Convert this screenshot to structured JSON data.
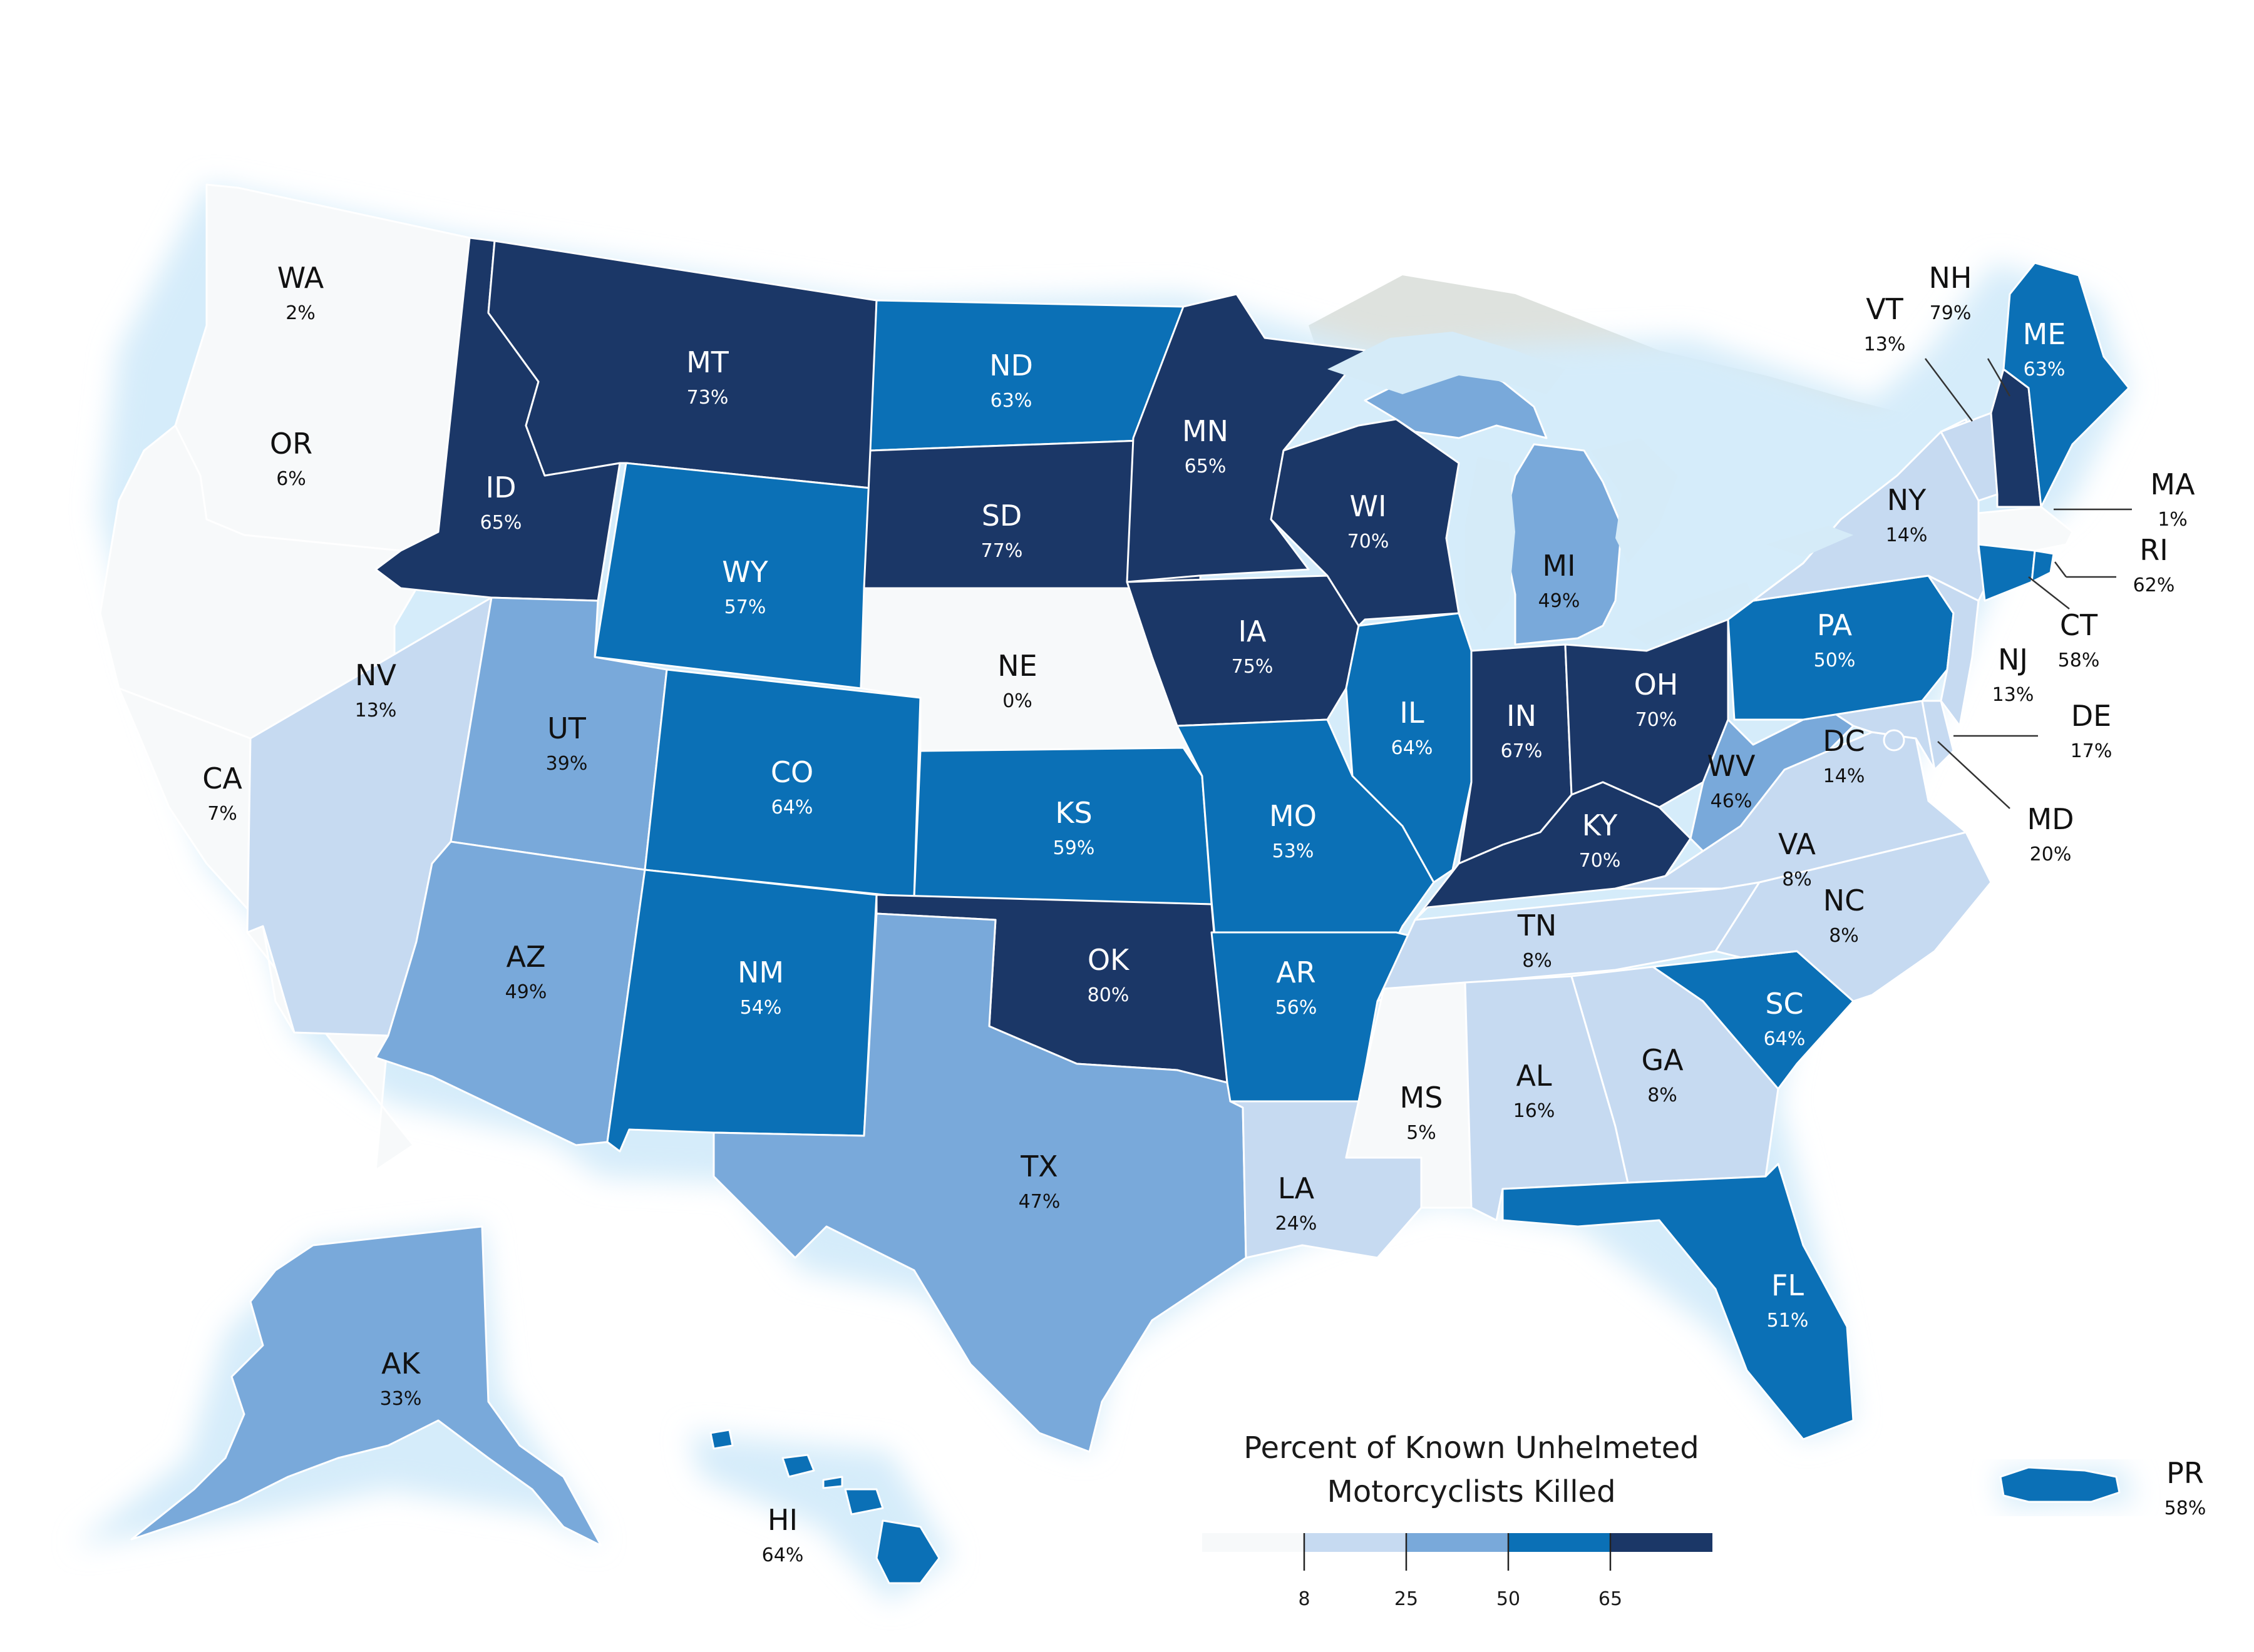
{
  "legend": {
    "title_line1": "Percent of Known Unhelmeted",
    "title_line2": "Motorcyclists Killed",
    "breaks": [
      "8",
      "25",
      "50",
      "65"
    ],
    "bin_colors": [
      "#f7f9fa",
      "#c6daf1",
      "#79a9da",
      "#0b70b6",
      "#1b3767"
    ]
  },
  "colors": {
    "lake": "#d5ebf8",
    "canada": "#dee2de",
    "glow": "#d5ecfa",
    "dark_text": "#111111",
    "light_text": "#ffffff"
  },
  "states": {
    "WA": {
      "code": "WA",
      "pct": "2%",
      "value": 2
    },
    "OR": {
      "code": "OR",
      "pct": "6%",
      "value": 6
    },
    "CA": {
      "code": "CA",
      "pct": "7%",
      "value": 7
    },
    "NV": {
      "code": "NV",
      "pct": "13%",
      "value": 13
    },
    "ID": {
      "code": "ID",
      "pct": "65%",
      "value": 65
    },
    "MT": {
      "code": "MT",
      "pct": "73%",
      "value": 73
    },
    "WY": {
      "code": "WY",
      "pct": "57%",
      "value": 57
    },
    "UT": {
      "code": "UT",
      "pct": "39%",
      "value": 39
    },
    "AZ": {
      "code": "AZ",
      "pct": "49%",
      "value": 49
    },
    "CO": {
      "code": "CO",
      "pct": "64%",
      "value": 64
    },
    "NM": {
      "code": "NM",
      "pct": "54%",
      "value": 54
    },
    "ND": {
      "code": "ND",
      "pct": "63%",
      "value": 63
    },
    "SD": {
      "code": "SD",
      "pct": "77%",
      "value": 77
    },
    "NE": {
      "code": "NE",
      "pct": "0%",
      "value": 0
    },
    "KS": {
      "code": "KS",
      "pct": "59%",
      "value": 59
    },
    "OK": {
      "code": "OK",
      "pct": "80%",
      "value": 80
    },
    "TX": {
      "code": "TX",
      "pct": "47%",
      "value": 47
    },
    "MN": {
      "code": "MN",
      "pct": "65%",
      "value": 65
    },
    "IA": {
      "code": "IA",
      "pct": "75%",
      "value": 75
    },
    "MO": {
      "code": "MO",
      "pct": "53%",
      "value": 53
    },
    "AR": {
      "code": "AR",
      "pct": "56%",
      "value": 56
    },
    "LA": {
      "code": "LA",
      "pct": "24%",
      "value": 24
    },
    "WI": {
      "code": "WI",
      "pct": "70%",
      "value": 70
    },
    "IL": {
      "code": "IL",
      "pct": "64%",
      "value": 64
    },
    "MI": {
      "code": "MI",
      "pct": "49%",
      "value": 49
    },
    "IN": {
      "code": "IN",
      "pct": "67%",
      "value": 67
    },
    "OH": {
      "code": "OH",
      "pct": "70%",
      "value": 70
    },
    "KY": {
      "code": "KY",
      "pct": "70%",
      "value": 70
    },
    "TN": {
      "code": "TN",
      "pct": "8%",
      "value": 8
    },
    "MS": {
      "code": "MS",
      "pct": "5%",
      "value": 5
    },
    "AL": {
      "code": "AL",
      "pct": "16%",
      "value": 16
    },
    "GA": {
      "code": "GA",
      "pct": "8%",
      "value": 8
    },
    "FL": {
      "code": "FL",
      "pct": "51%",
      "value": 51
    },
    "SC": {
      "code": "SC",
      "pct": "64%",
      "value": 64
    },
    "NC": {
      "code": "NC",
      "pct": "8%",
      "value": 8
    },
    "VA": {
      "code": "VA",
      "pct": "8%",
      "value": 8
    },
    "WV": {
      "code": "WV",
      "pct": "46%",
      "value": 46
    },
    "PA": {
      "code": "PA",
      "pct": "50%",
      "value": 50
    },
    "NY": {
      "code": "NY",
      "pct": "14%",
      "value": 14
    },
    "VT": {
      "code": "VT",
      "pct": "13%",
      "value": 13
    },
    "NH": {
      "code": "NH",
      "pct": "79%",
      "value": 79
    },
    "ME": {
      "code": "ME",
      "pct": "63%",
      "value": 63
    },
    "MA": {
      "code": "MA",
      "pct": "1%",
      "value": 1
    },
    "RI": {
      "code": "RI",
      "pct": "62%",
      "value": 62
    },
    "CT": {
      "code": "CT",
      "pct": "58%",
      "value": 58
    },
    "NJ": {
      "code": "NJ",
      "pct": "13%",
      "value": 13
    },
    "DE": {
      "code": "DE",
      "pct": "17%",
      "value": 17
    },
    "MD": {
      "code": "MD",
      "pct": "20%",
      "value": 20
    },
    "DC": {
      "code": "DC",
      "pct": "14%",
      "value": 14
    },
    "AK": {
      "code": "AK",
      "pct": "33%",
      "value": 33
    },
    "HI": {
      "code": "HI",
      "pct": "64%",
      "value": 64
    },
    "PR": {
      "code": "PR",
      "pct": "58%",
      "value": 58
    }
  }
}
